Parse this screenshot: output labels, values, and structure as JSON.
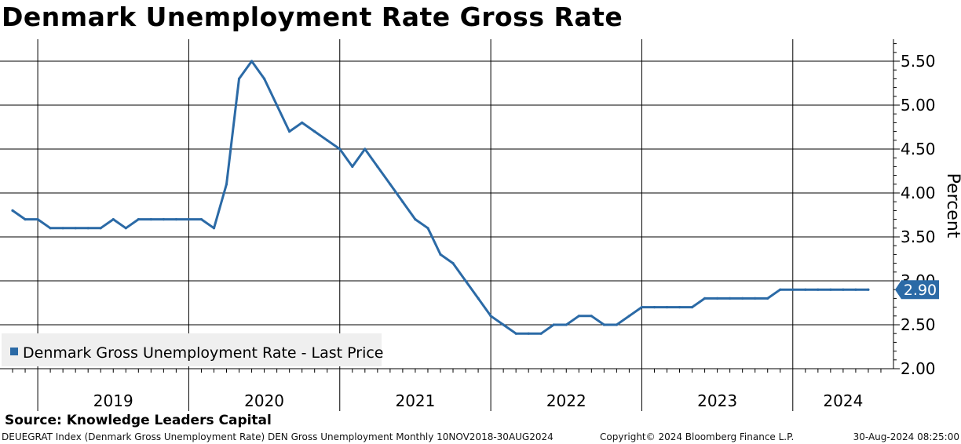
{
  "title": "Denmark Unemployment Rate Gross Rate",
  "source": "Source: Knowledge Leaders Capital",
  "footer": {
    "left": "DEUEGRAT Index (Denmark Gross Unemployment Rate) DEN Gross Unemployment  Monthly 10NOV2018-30AUG2024",
    "center": "Copyright© 2024 Bloomberg Finance L.P.",
    "right": "30-Aug-2024 08:25:00"
  },
  "colors": {
    "series": "#2b6aa6",
    "grid": "#000000",
    "legend_bg": "#efefef"
  },
  "chart_data": {
    "type": "line",
    "title": "Denmark Unemployment Rate Gross Rate",
    "ylabel": "Percent",
    "xlabel": "",
    "ylim": [
      2.0,
      5.75
    ],
    "yticks": [
      2.0,
      2.5,
      3.0,
      3.5,
      4.0,
      4.5,
      5.0,
      5.5
    ],
    "ytick_labels": [
      "2.00",
      "2.50",
      "3.00",
      "3.50",
      "4.00",
      "4.50",
      "5.00",
      "5.50"
    ],
    "xlim": [
      "2018-10",
      "2024-09"
    ],
    "year_labels": [
      "2019",
      "2020",
      "2021",
      "2022",
      "2023",
      "2024"
    ],
    "grid": true,
    "legend_position": "bottom-left",
    "last_value_label": "2.90",
    "series": [
      {
        "name": "Denmark Gross Unemployment Rate - Last Price",
        "x": [
          "2018-11",
          "2018-12",
          "2019-01",
          "2019-02",
          "2019-03",
          "2019-04",
          "2019-05",
          "2019-06",
          "2019-07",
          "2019-08",
          "2019-09",
          "2019-10",
          "2019-11",
          "2019-12",
          "2020-01",
          "2020-02",
          "2020-03",
          "2020-04",
          "2020-05",
          "2020-06",
          "2020-07",
          "2020-08",
          "2020-09",
          "2020-10",
          "2020-11",
          "2020-12",
          "2021-01",
          "2021-02",
          "2021-03",
          "2021-04",
          "2021-05",
          "2021-06",
          "2021-07",
          "2021-08",
          "2021-09",
          "2021-10",
          "2021-11",
          "2021-12",
          "2022-01",
          "2022-02",
          "2022-03",
          "2022-04",
          "2022-05",
          "2022-06",
          "2022-07",
          "2022-08",
          "2022-09",
          "2022-10",
          "2022-11",
          "2022-12",
          "2023-01",
          "2023-02",
          "2023-03",
          "2023-04",
          "2023-05",
          "2023-06",
          "2023-07",
          "2023-08",
          "2023-09",
          "2023-10",
          "2023-11",
          "2023-12",
          "2024-01",
          "2024-02",
          "2024-03",
          "2024-04",
          "2024-05",
          "2024-06",
          "2024-07"
        ],
        "y": [
          3.8,
          3.7,
          3.7,
          3.6,
          3.6,
          3.6,
          3.6,
          3.6,
          3.7,
          3.6,
          3.7,
          3.7,
          3.7,
          3.7,
          3.7,
          3.7,
          3.6,
          4.1,
          5.3,
          5.5,
          5.3,
          5.0,
          4.7,
          4.8,
          4.7,
          4.6,
          4.5,
          4.3,
          4.5,
          4.3,
          4.1,
          3.9,
          3.7,
          3.6,
          3.3,
          3.2,
          3.0,
          2.8,
          2.6,
          2.5,
          2.4,
          2.4,
          2.4,
          2.5,
          2.5,
          2.6,
          2.6,
          2.5,
          2.5,
          2.6,
          2.7,
          2.7,
          2.7,
          2.7,
          2.7,
          2.8,
          2.8,
          2.8,
          2.8,
          2.8,
          2.8,
          2.9,
          2.9,
          2.9,
          2.9,
          2.9,
          2.9,
          2.9,
          2.9
        ]
      }
    ]
  }
}
